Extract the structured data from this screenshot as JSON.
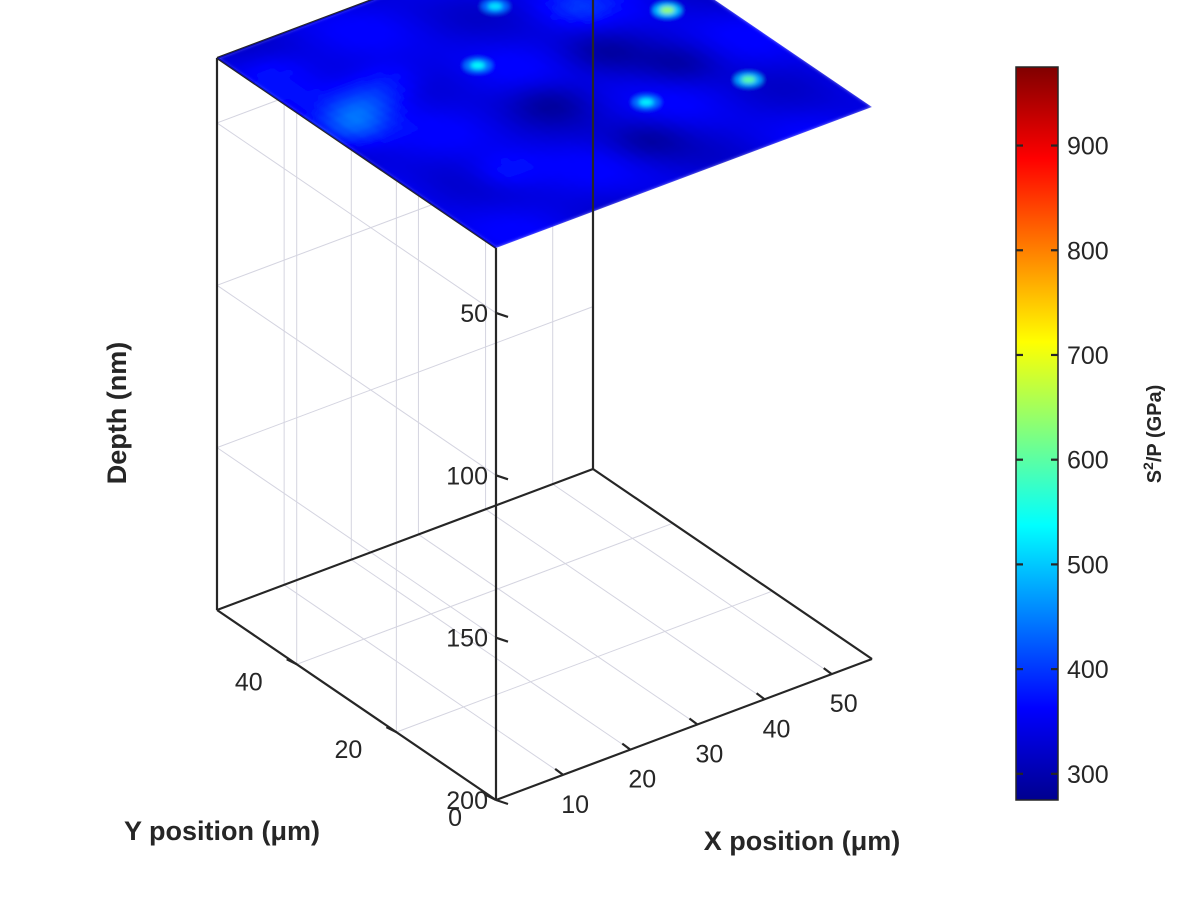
{
  "chart_data": {
    "type": "heatmap",
    "title": "",
    "view": "3d",
    "surface_depth": 30,
    "xlabel": "X position (μm)",
    "ylabel": "Y position (μm)",
    "zlabel": "Depth (nm)",
    "xlim": [
      0,
      56
    ],
    "ylim": [
      0,
      56
    ],
    "zlim": [
      30,
      200
    ],
    "z_reversed": true,
    "grid": true,
    "xticks": [
      10,
      20,
      30,
      40,
      50
    ],
    "yticks": [
      0,
      20,
      40
    ],
    "zticks": [
      50,
      100,
      150,
      200
    ],
    "colorbar": {
      "label_main": "S",
      "label_sup": "2",
      "label_rest": "/P (GPa)",
      "min": 275,
      "max": 975,
      "ticks": [
        300,
        400,
        500,
        600,
        700,
        800,
        900
      ],
      "colormap": "jet",
      "position": "right"
    },
    "grid_resolution": [
      14,
      14
    ],
    "background_level": 345,
    "hotspots": [
      {
        "x": 24,
        "y": 36,
        "value": 540
      },
      {
        "x": 34,
        "y": 46,
        "value": 520
      },
      {
        "x": 50,
        "y": 33,
        "value": 640
      },
      {
        "x": 48,
        "y": 14,
        "value": 600
      },
      {
        "x": 35,
        "y": 17,
        "value": 530
      }
    ],
    "bands": [
      {
        "x": 3,
        "y": 33,
        "value": 410
      },
      {
        "x": 6,
        "y": 36,
        "value": 400
      },
      {
        "x": 10,
        "y": 38,
        "value": 385
      },
      {
        "x": 14,
        "y": 40,
        "value": 380
      },
      {
        "x": 12,
        "y": 14,
        "value": 380
      },
      {
        "x": 4,
        "y": 50,
        "value": 370
      },
      {
        "x": 42,
        "y": 40,
        "value": 380
      },
      {
        "x": 52,
        "y": 44,
        "value": 375
      }
    ],
    "lows": [
      {
        "x": 30,
        "y": 10,
        "value": 305
      },
      {
        "x": 26,
        "y": 24,
        "value": 310
      },
      {
        "x": 38,
        "y": 30,
        "value": 315
      },
      {
        "x": 44,
        "y": 22,
        "value": 310
      }
    ]
  }
}
